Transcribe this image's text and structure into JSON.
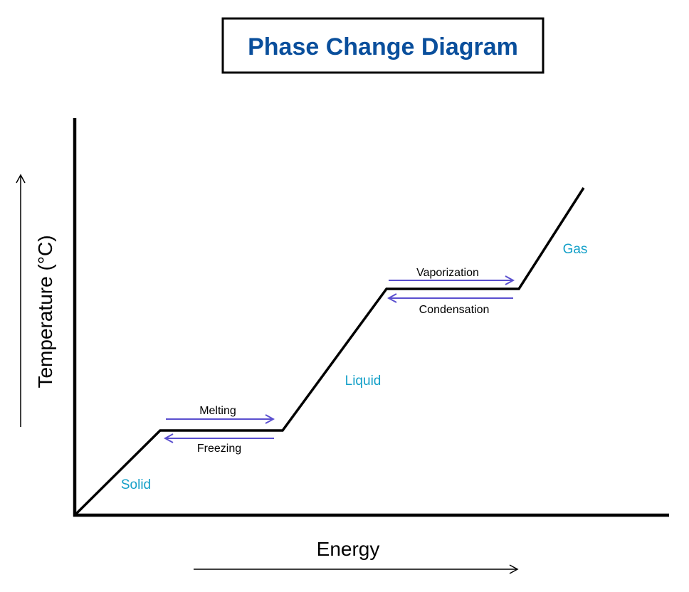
{
  "title": "Phase Change Diagram",
  "axes": {
    "x_label": "Energy",
    "y_label": "Temperature (°C)"
  },
  "phases": {
    "solid": "Solid",
    "liquid": "Liquid",
    "gas": "Gas"
  },
  "processes": {
    "melting": "Melting",
    "freezing": "Freezing",
    "vaporization": "Vaporization",
    "condensation": "Condensation"
  },
  "colors": {
    "title": "#0a4f9c",
    "phase_label": "#14a0c8",
    "process_arrow": "#5a4fcf",
    "curve": "#000000",
    "text": "#000000"
  }
}
